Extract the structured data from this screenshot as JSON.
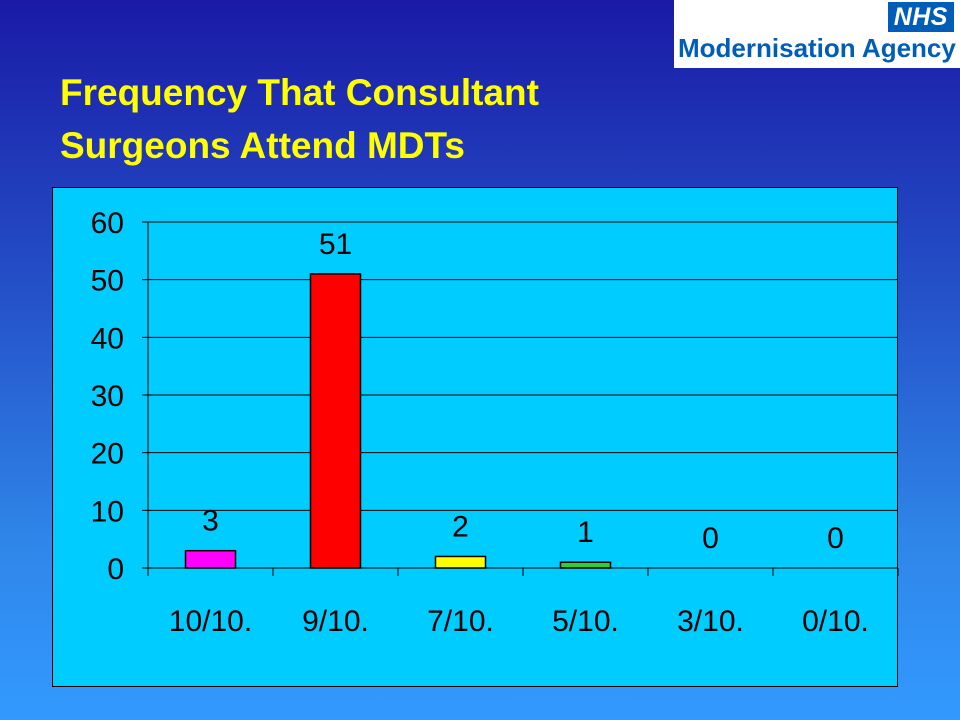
{
  "logo": {
    "badge": "NHS",
    "agency": "Modernisation Agency"
  },
  "title_lines": [
    "Frequency That Consultant",
    "Surgeons Attend MDTs"
  ],
  "chart_data": {
    "type": "bar",
    "categories": [
      "10/10.",
      "9/10.",
      "7/10.",
      "5/10.",
      "3/10.",
      "0/10."
    ],
    "values": [
      3,
      51,
      2,
      1,
      0,
      0
    ],
    "data_labels": [
      "3",
      "51",
      "2",
      "1",
      "0",
      "0"
    ],
    "bar_colors": [
      "#ff00ff",
      "#ff0000",
      "#ffff00",
      "#33cc33",
      "#00ccff",
      "#00ccff"
    ],
    "yticks": [
      0,
      10,
      20,
      30,
      40,
      50,
      60
    ],
    "ylim": [
      0,
      60
    ],
    "grid": true,
    "legend": "none",
    "plot_background": "#00ccff"
  },
  "colors": {
    "title": "#ffff00",
    "nhs_blue": "#005eb8",
    "background_top": "#1a1aa6",
    "background_bottom": "#3399ff"
  }
}
